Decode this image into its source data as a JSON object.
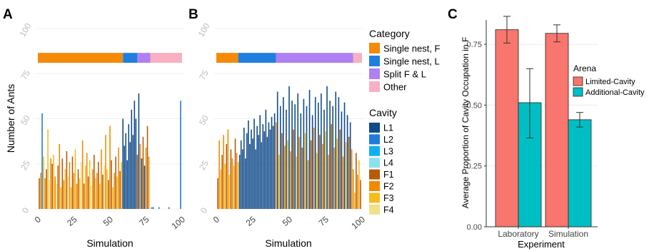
{
  "panels": {
    "a_label": "A",
    "b_label": "B",
    "c_label": "C"
  },
  "colors": {
    "cavities": {
      "L1": "#0f4a8a",
      "L2": "#1e7bd8",
      "L3": "#10b0f0",
      "L4": "#8fe0ee",
      "F1": "#b85a07",
      "F2": "#f28a00",
      "F3": "#f6bb1e",
      "F4": "#f2e089"
    },
    "categories": {
      "Single nest, F": "#f58a07",
      "Single nest, L": "#1f7fe0",
      "Split F & L": "#b07ff2",
      "Other": "#f8b0c2"
    },
    "arenas": {
      "Limited-Cavity": "#f8766d",
      "Additional-Cavity": "#00bfc4"
    }
  },
  "chart_data": [
    {
      "panel": "A",
      "type": "bar",
      "xlabel": "Simulation",
      "ylabel": "Number of Ants",
      "xlim": [
        0,
        100
      ],
      "ylim": [
        0,
        100
      ],
      "xticks": [
        "0",
        "25",
        "50",
        "75",
        "100"
      ],
      "yticks": [
        "0",
        "25",
        "50",
        "75",
        "100"
      ],
      "category_bar": [
        {
          "category": "Single nest, F",
          "start": 0,
          "end": 59
        },
        {
          "category": "Single nest, L",
          "start": 59,
          "end": 69
        },
        {
          "category": "Split F & L",
          "start": 69,
          "end": 78
        },
        {
          "category": "Other",
          "start": 78,
          "end": 100
        }
      ],
      "cavity_bars": [
        [
          1,
          17,
          "F1"
        ],
        [
          2,
          20,
          "F2"
        ],
        [
          3,
          53,
          "L2"
        ],
        [
          4,
          29,
          "F3"
        ],
        [
          5,
          17,
          "F2"
        ],
        [
          6,
          22,
          "F1"
        ],
        [
          7,
          44,
          "F3"
        ],
        [
          8,
          16,
          "F4"
        ],
        [
          9,
          28,
          "F2"
        ],
        [
          10,
          25,
          "F1"
        ],
        [
          11,
          30,
          "F3"
        ],
        [
          12,
          18,
          "F2"
        ],
        [
          13,
          14,
          "F4"
        ],
        [
          14,
          24,
          "F1"
        ],
        [
          15,
          36,
          "F2"
        ],
        [
          16,
          12,
          "F3"
        ],
        [
          17,
          28,
          "F1"
        ],
        [
          18,
          16,
          "F2"
        ],
        [
          19,
          22,
          "F3"
        ],
        [
          20,
          32,
          "F1"
        ],
        [
          21,
          18,
          "F4"
        ],
        [
          22,
          26,
          "F2"
        ],
        [
          23,
          12,
          "F3"
        ],
        [
          24,
          29,
          "F1"
        ],
        [
          25,
          20,
          "F2"
        ],
        [
          26,
          33,
          "F3"
        ],
        [
          27,
          14,
          "F2"
        ],
        [
          28,
          22,
          "F1"
        ],
        [
          29,
          17,
          "F3"
        ],
        [
          30,
          26,
          "F4"
        ],
        [
          31,
          38,
          "F2"
        ],
        [
          32,
          14,
          "F1"
        ],
        [
          33,
          24,
          "F3"
        ],
        [
          34,
          31,
          "F2"
        ],
        [
          35,
          18,
          "F1"
        ],
        [
          36,
          27,
          "F3"
        ],
        [
          37,
          13,
          "F4"
        ],
        [
          38,
          22,
          "F2"
        ],
        [
          39,
          30,
          "F1"
        ],
        [
          40,
          17,
          "F3"
        ],
        [
          41,
          20,
          "F2"
        ],
        [
          42,
          26,
          "F1"
        ],
        [
          43,
          14,
          "F3"
        ],
        [
          44,
          33,
          "F2"
        ],
        [
          45,
          19,
          "F1"
        ],
        [
          46,
          24,
          "F4"
        ],
        [
          47,
          41,
          "F2"
        ],
        [
          48,
          22,
          "F3"
        ],
        [
          49,
          16,
          "F1"
        ],
        [
          50,
          46,
          "F2"
        ],
        [
          51,
          27,
          "F1"
        ],
        [
          52,
          12,
          "F3"
        ],
        [
          53,
          20,
          "F2"
        ],
        [
          54,
          29,
          "F1"
        ],
        [
          55,
          18,
          "F3"
        ],
        [
          56,
          34,
          "F2"
        ],
        [
          57,
          21,
          "F1"
        ],
        [
          58,
          26,
          "F3"
        ],
        [
          59,
          50,
          "L1"
        ],
        [
          60,
          35,
          "L1"
        ],
        [
          61,
          42,
          "L1"
        ],
        [
          62,
          27,
          "L1"
        ],
        [
          63,
          47,
          "L1"
        ],
        [
          64,
          37,
          "L1"
        ],
        [
          65,
          55,
          "L1"
        ],
        [
          66,
          41,
          "L1"
        ],
        [
          67,
          60,
          "L1"
        ],
        [
          68,
          50,
          "L1"
        ],
        [
          69,
          30,
          "F1"
        ],
        [
          70,
          64,
          "L1"
        ],
        [
          71,
          36,
          "F2"
        ],
        [
          72,
          28,
          "L1"
        ],
        [
          73,
          40,
          "F1"
        ],
        [
          74,
          24,
          "L1"
        ],
        [
          75,
          34,
          "F2"
        ],
        [
          76,
          46,
          "F1"
        ],
        [
          77,
          29,
          "F2"
        ],
        [
          79,
          1,
          "L2"
        ],
        [
          80,
          1,
          "L2"
        ],
        [
          84,
          1,
          "L2"
        ],
        [
          91,
          1,
          "L2"
        ],
        [
          99,
          60,
          "L2"
        ]
      ]
    },
    {
      "panel": "B",
      "type": "bar",
      "xlabel": "Simulation",
      "ylim": [
        0,
        100
      ],
      "xlim": [
        0,
        100
      ],
      "xticks": [
        "0",
        "25",
        "50",
        "75",
        "100"
      ],
      "yticks": [
        "0",
        "25",
        "50",
        "75",
        "100"
      ],
      "category_bar": [
        {
          "category": "Single nest, F",
          "start": 0,
          "end": 15
        },
        {
          "category": "Single nest, L",
          "start": 15,
          "end": 41
        },
        {
          "category": "Split F & L",
          "start": 41,
          "end": 94
        },
        {
          "category": "Other",
          "start": 94,
          "end": 100
        }
      ],
      "cavity_bars": [
        [
          1,
          17,
          "F1"
        ],
        [
          2,
          38,
          "F2"
        ],
        [
          3,
          22,
          "F3"
        ],
        [
          4,
          30,
          "F1"
        ],
        [
          5,
          41,
          "F2"
        ],
        [
          6,
          25,
          "F3"
        ],
        [
          7,
          36,
          "F1"
        ],
        [
          8,
          44,
          "F2"
        ],
        [
          9,
          19,
          "F3"
        ],
        [
          10,
          33,
          "F1"
        ],
        [
          11,
          28,
          "F2"
        ],
        [
          12,
          24,
          "F3"
        ],
        [
          13,
          39,
          "F1"
        ],
        [
          14,
          31,
          "F2"
        ],
        [
          15,
          26,
          "F3"
        ],
        [
          16,
          30,
          "L1"
        ],
        [
          17,
          38,
          "L1"
        ],
        [
          18,
          33,
          "L1"
        ],
        [
          19,
          45,
          "L1"
        ],
        [
          20,
          28,
          "L1"
        ],
        [
          21,
          42,
          "L1"
        ],
        [
          22,
          49,
          "L1"
        ],
        [
          23,
          36,
          "L1"
        ],
        [
          24,
          44,
          "L1"
        ],
        [
          25,
          39,
          "L1"
        ],
        [
          26,
          50,
          "L1"
        ],
        [
          27,
          33,
          "L1"
        ],
        [
          28,
          46,
          "L1"
        ],
        [
          29,
          41,
          "L1"
        ],
        [
          30,
          52,
          "L1"
        ],
        [
          31,
          37,
          "L1"
        ],
        [
          32,
          47,
          "L1"
        ],
        [
          33,
          43,
          "L1"
        ],
        [
          34,
          55,
          "L1"
        ],
        [
          35,
          40,
          "L1"
        ],
        [
          36,
          48,
          "L1"
        ],
        [
          37,
          44,
          "L1"
        ],
        [
          38,
          51,
          "L1"
        ],
        [
          39,
          46,
          "L1"
        ],
        [
          40,
          53,
          "L1"
        ],
        [
          41,
          48,
          "F2"
        ],
        [
          42,
          65,
          "L1"
        ],
        [
          43,
          30,
          "F3"
        ],
        [
          44,
          57,
          "L1"
        ],
        [
          45,
          42,
          "F1"
        ],
        [
          46,
          62,
          "L1"
        ],
        [
          47,
          35,
          "F2"
        ],
        [
          48,
          55,
          "L1"
        ],
        [
          49,
          38,
          "F3"
        ],
        [
          50,
          68,
          "L1"
        ],
        [
          51,
          32,
          "F2"
        ],
        [
          52,
          60,
          "L1"
        ],
        [
          53,
          44,
          "F1"
        ],
        [
          54,
          58,
          "L1"
        ],
        [
          55,
          29,
          "F3"
        ],
        [
          56,
          64,
          "L1"
        ],
        [
          57,
          40,
          "F2"
        ],
        [
          58,
          53,
          "L1"
        ],
        [
          59,
          34,
          "F1"
        ],
        [
          60,
          61,
          "L1"
        ],
        [
          61,
          42,
          "F3"
        ],
        [
          62,
          57,
          "L1"
        ],
        [
          63,
          27,
          "F2"
        ],
        [
          64,
          66,
          "L1"
        ],
        [
          65,
          38,
          "F1"
        ],
        [
          66,
          52,
          "L1"
        ],
        [
          67,
          45,
          "F2"
        ],
        [
          68,
          62,
          "L1"
        ],
        [
          69,
          31,
          "F3"
        ],
        [
          70,
          59,
          "L1"
        ],
        [
          71,
          41,
          "F1"
        ],
        [
          72,
          64,
          "L1"
        ],
        [
          73,
          36,
          "F2"
        ],
        [
          74,
          55,
          "L1"
        ],
        [
          75,
          43,
          "F3"
        ],
        [
          76,
          68,
          "L1"
        ],
        [
          77,
          30,
          "F2"
        ],
        [
          78,
          60,
          "L1"
        ],
        [
          79,
          47,
          "F1"
        ],
        [
          80,
          57,
          "L1"
        ],
        [
          81,
          34,
          "F2"
        ],
        [
          82,
          65,
          "L1"
        ],
        [
          83,
          39,
          "F3"
        ],
        [
          84,
          62,
          "L1"
        ],
        [
          85,
          44,
          "F1"
        ],
        [
          86,
          54,
          "L1"
        ],
        [
          87,
          29,
          "F2"
        ],
        [
          88,
          59,
          "L1"
        ],
        [
          89,
          37,
          "F3"
        ],
        [
          90,
          52,
          "L1"
        ],
        [
          91,
          40,
          "F1"
        ],
        [
          92,
          48,
          "L1"
        ],
        [
          93,
          33,
          "F2"
        ],
        [
          94,
          22,
          "F2"
        ],
        [
          95,
          9,
          "F3"
        ],
        [
          96,
          31,
          "F1"
        ],
        [
          97,
          19,
          "F2"
        ],
        [
          98,
          27,
          "F3"
        ],
        [
          99,
          16,
          "F1"
        ]
      ]
    },
    {
      "panel": "C",
      "type": "bar",
      "xlabel": "Experiment",
      "ylabel": "Average Proportion of Cavity Occupation in F",
      "categories": [
        "Laboratory",
        "Simulation"
      ],
      "ylim": [
        0,
        0.85
      ],
      "yticks": [
        "0.00",
        "0.25",
        "0.50",
        "0.75"
      ],
      "legend_title": "Arena",
      "series": [
        {
          "name": "Limited-Cavity",
          "values": [
            0.81,
            0.795
          ],
          "err_low": [
            0.755,
            0.76
          ],
          "err_high": [
            0.865,
            0.83
          ]
        },
        {
          "name": "Additional-Cavity",
          "values": [
            0.51,
            0.44
          ],
          "err_low": [
            0.365,
            0.41
          ],
          "err_high": [
            0.65,
            0.47
          ]
        }
      ]
    }
  ],
  "legend": {
    "category_title": "Category",
    "categories": [
      "Single nest, F",
      "Single nest, L",
      "Split F & L",
      "Other"
    ],
    "cavity_title": "Cavity",
    "cavities": [
      "L1",
      "L2",
      "L3",
      "L4",
      "F1",
      "F2",
      "F3",
      "F4"
    ]
  }
}
